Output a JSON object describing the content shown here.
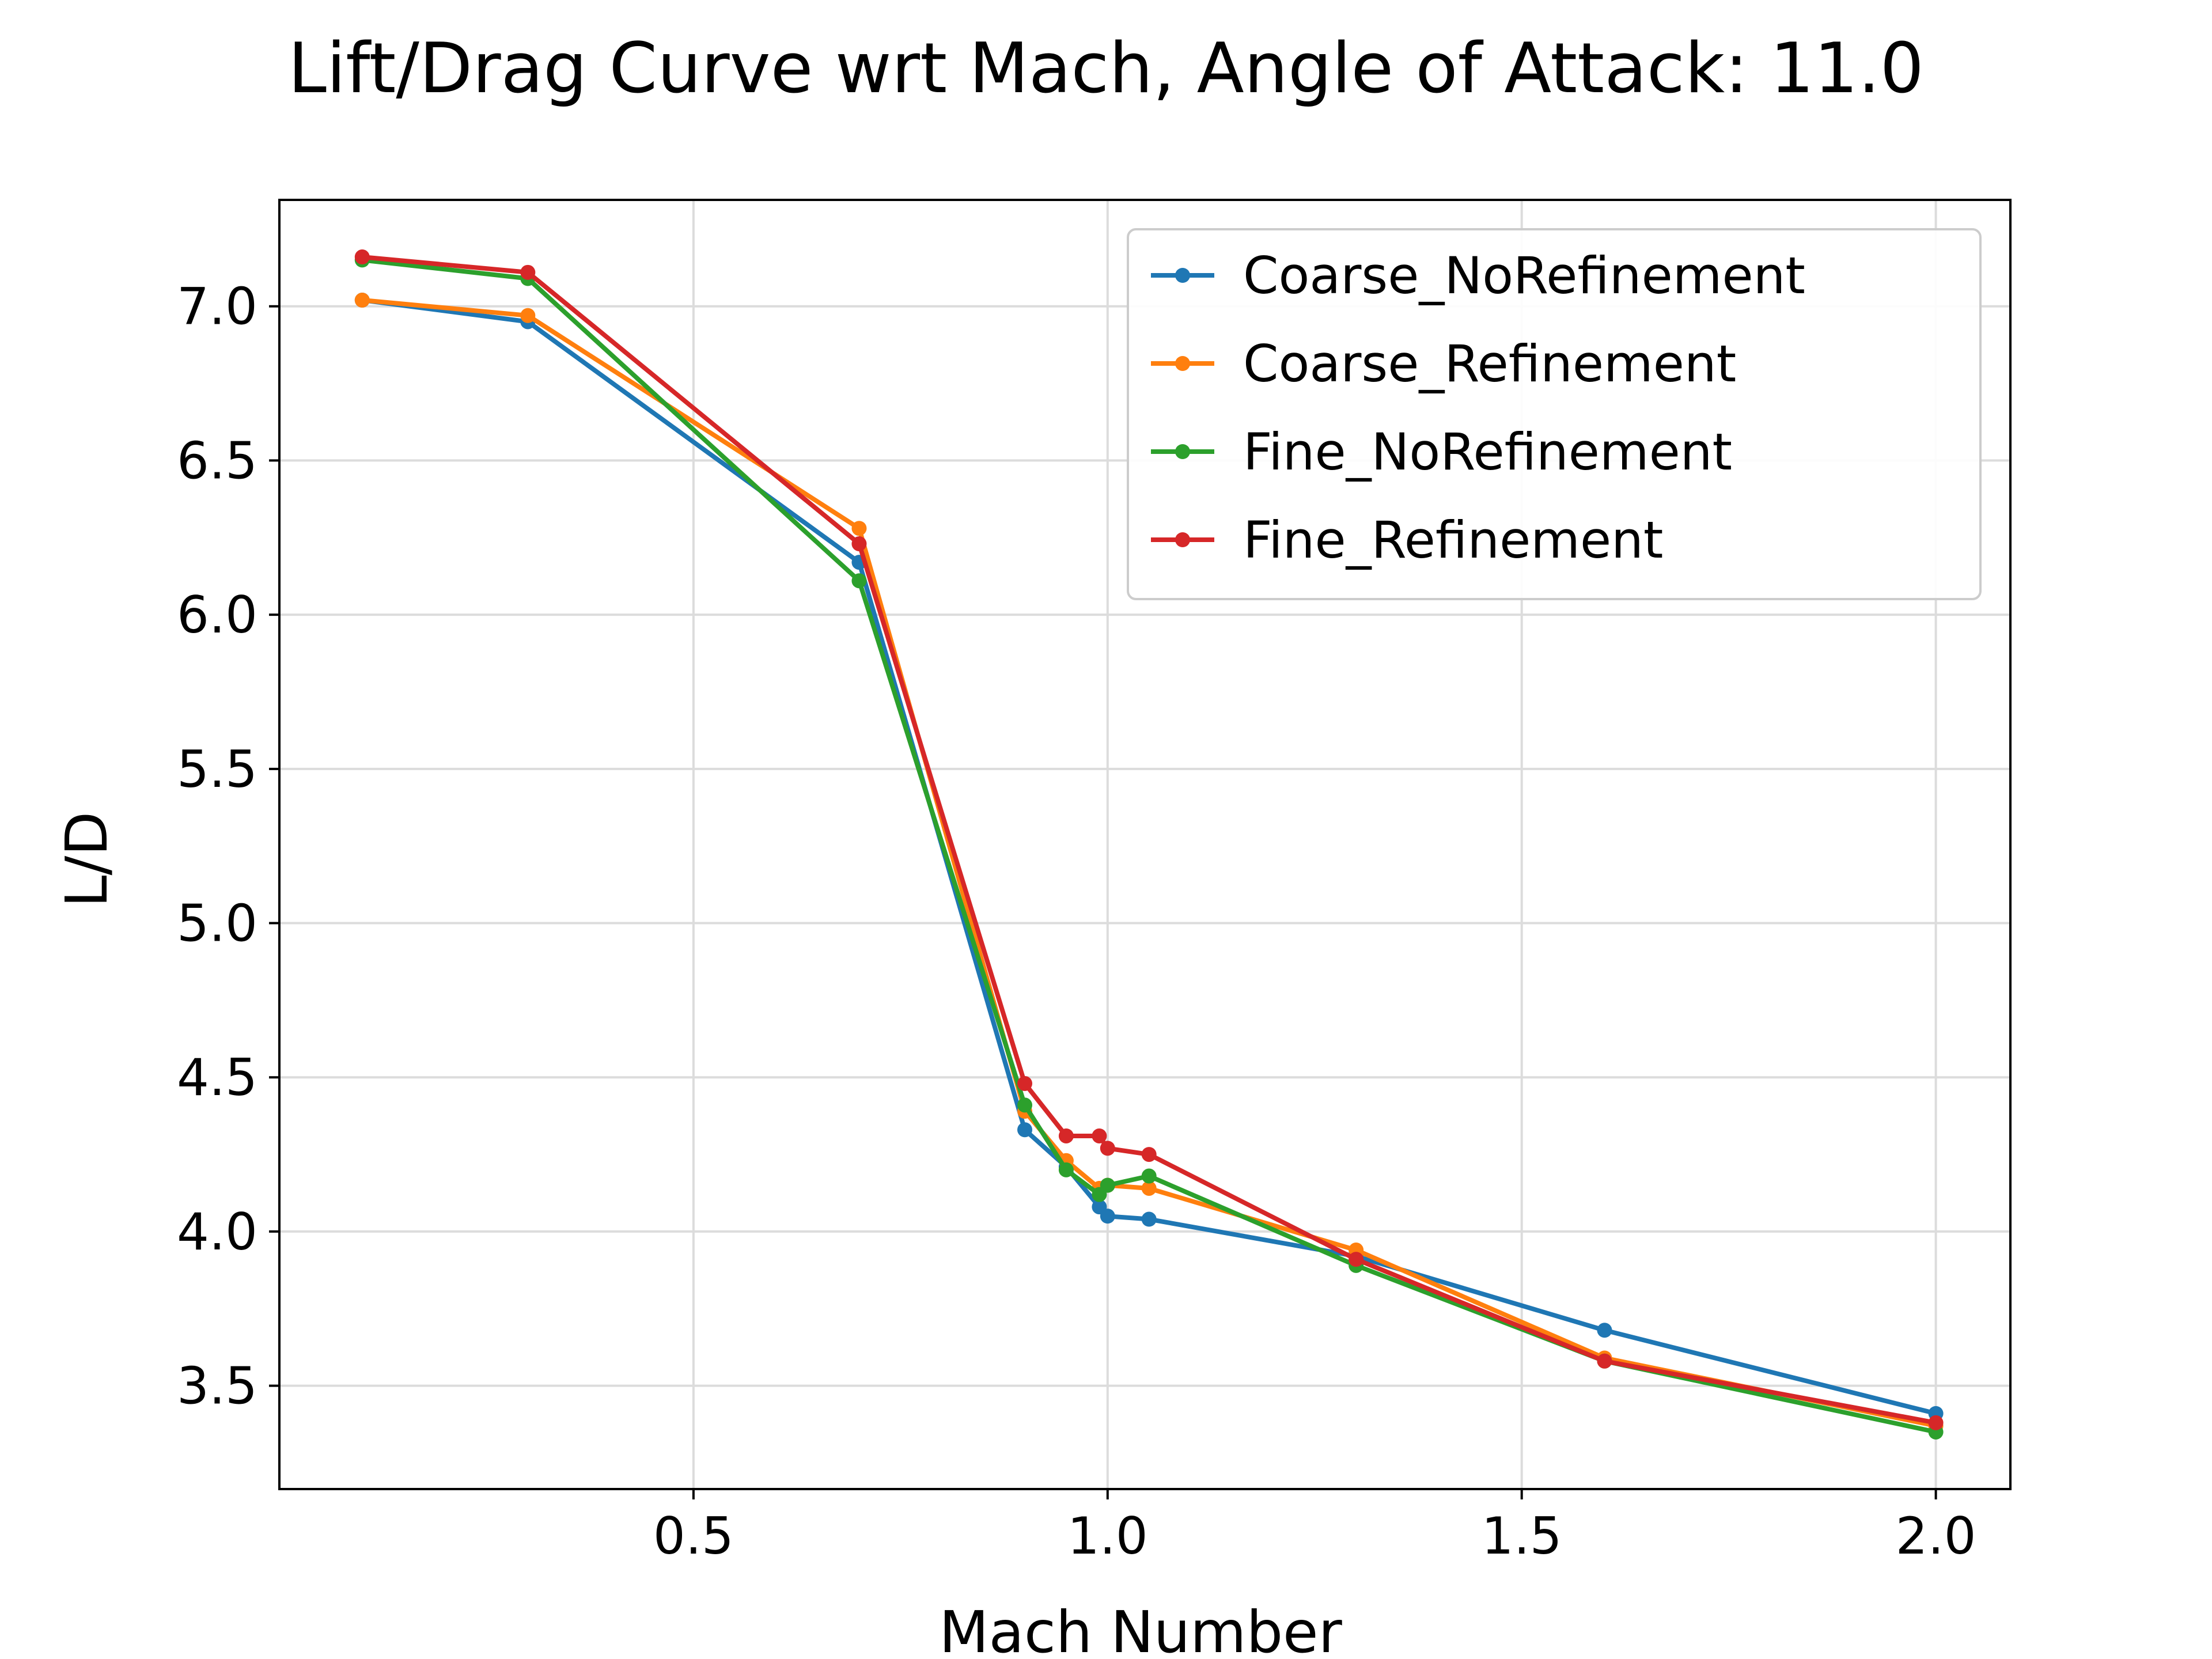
{
  "chart_data": {
    "type": "line",
    "title": "Lift/Drag Curve wrt Mach, Angle of Attack: 11.0",
    "xlabel": "Mach Number",
    "ylabel": "L/D",
    "xlim": [
      0.0,
      2.09
    ],
    "ylim": [
      3.165,
      7.345
    ],
    "xticks": [
      0.5,
      1.0,
      1.5,
      2.0
    ],
    "xtick_labels": [
      "0.5",
      "1.0",
      "1.5",
      "2.0"
    ],
    "yticks": [
      3.5,
      4.0,
      4.5,
      5.0,
      5.5,
      6.0,
      6.5,
      7.0
    ],
    "ytick_labels": [
      "3.5",
      "4.0",
      "4.5",
      "5.0",
      "5.5",
      "6.0",
      "6.5",
      "7.0"
    ],
    "grid": true,
    "legend_position": "top-right",
    "series": [
      {
        "name": "Coarse_NoRefinement",
        "color": "#1f77b4",
        "x": [
          0.1,
          0.3,
          0.7,
          0.9,
          0.95,
          0.99,
          1.0,
          1.05,
          1.3,
          1.6,
          2.0
        ],
        "y": [
          7.02,
          6.95,
          6.17,
          4.33,
          4.21,
          4.08,
          4.05,
          4.04,
          3.92,
          3.68,
          3.41
        ]
      },
      {
        "name": "Coarse_Refinement",
        "color": "#ff7f0e",
        "x": [
          0.1,
          0.3,
          0.7,
          0.9,
          0.95,
          0.99,
          1.0,
          1.05,
          1.3,
          1.6,
          2.0
        ],
        "y": [
          7.02,
          6.97,
          6.28,
          4.39,
          4.23,
          4.14,
          4.15,
          4.14,
          3.94,
          3.59,
          3.37
        ]
      },
      {
        "name": "Fine_NoRefinement",
        "color": "#2ca02c",
        "x": [
          0.1,
          0.3,
          0.7,
          0.9,
          0.95,
          0.99,
          1.0,
          1.05,
          1.3,
          1.6,
          2.0
        ],
        "y": [
          7.15,
          7.09,
          6.11,
          4.41,
          4.2,
          4.12,
          4.15,
          4.18,
          3.89,
          3.58,
          3.35
        ]
      },
      {
        "name": "Fine_Refinement",
        "color": "#d62728",
        "x": [
          0.1,
          0.3,
          0.7,
          0.9,
          0.95,
          0.99,
          1.0,
          1.05,
          1.3,
          1.6,
          2.0
        ],
        "y": [
          7.16,
          7.11,
          6.23,
          4.48,
          4.31,
          4.31,
          4.27,
          4.25,
          3.91,
          3.58,
          3.38
        ]
      }
    ]
  }
}
